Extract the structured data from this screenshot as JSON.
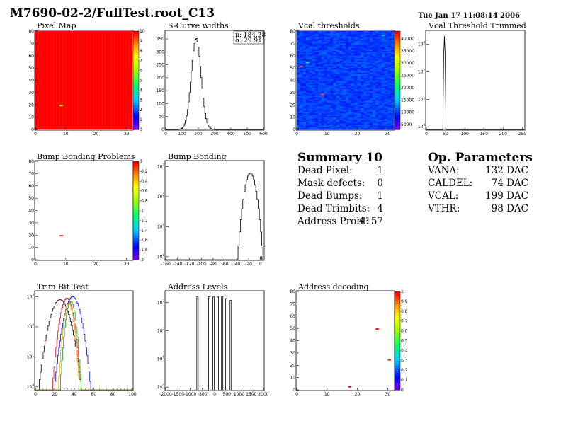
{
  "page": {
    "title": "M7690-02-2/FullTest.root_C13",
    "date": "Tue Jan 17 11:08:14 2006"
  },
  "summary": {
    "title": "Summary",
    "count": "10",
    "rows": [
      {
        "label": "Dead Pixel:",
        "value": "1"
      },
      {
        "label": "Mask defects:",
        "value": "0"
      },
      {
        "label": "Dead Bumps:",
        "value": "1"
      },
      {
        "label": "Dead Trimbits:",
        "value": "4"
      },
      {
        "label": "Address Probl:",
        "value": "4157"
      }
    ]
  },
  "op_parameters": {
    "title": "Op. Parameters",
    "rows": [
      {
        "label": "VANA:",
        "value": "132 DAC"
      },
      {
        "label": "CALDEL:",
        "value": "74 DAC"
      },
      {
        "label": "VCAL:",
        "value": "199 DAC"
      },
      {
        "label": "VTHR:",
        "value": "98 DAC"
      }
    ]
  },
  "chart_data": [
    {
      "id": "pixel-map",
      "type": "heatmap",
      "title": "Pixel Map",
      "xlim": [
        0,
        32
      ],
      "ylim": [
        0,
        80
      ],
      "xticks": [
        "0",
        "10",
        "20",
        "30"
      ],
      "yticks": [
        "0",
        "10",
        "20",
        "30",
        "40",
        "50",
        "60",
        "70",
        "80"
      ],
      "fill_value": 10,
      "z_range": [
        0,
        10
      ],
      "colorbar_ticks": [
        "0",
        "1",
        "2",
        "3",
        "4",
        "5",
        "6",
        "7",
        "8",
        "9",
        "10"
      ],
      "special_pixels": [
        {
          "x": 8,
          "y": 19,
          "value": 6
        }
      ]
    },
    {
      "id": "scurve-widths",
      "type": "line",
      "title": "S-Curve widths",
      "xlim": [
        0,
        600
      ],
      "ylim": [
        0,
        380
      ],
      "xticks": [
        "0",
        "100",
        "200",
        "300",
        "400",
        "500",
        "600"
      ],
      "yticks": [
        "0",
        "50",
        "100",
        "150",
        "200",
        "250",
        "300",
        "350"
      ],
      "stats": [
        "μ: 184.28",
        "σ: 29.91"
      ],
      "mean": 184.28,
      "sigma": 29.91,
      "peak": 352
    },
    {
      "id": "vcal-thresholds",
      "type": "heatmap",
      "title": "Vcal thresholds",
      "xlim": [
        0,
        32
      ],
      "ylim": [
        0,
        80
      ],
      "xticks": [
        "0",
        "10",
        "20",
        "30"
      ],
      "yticks": [
        "0",
        "10",
        "20",
        "30",
        "40",
        "50",
        "60",
        "70",
        "80"
      ],
      "z_range": [
        3000,
        43000
      ],
      "colorbar_ticks": [
        "5000",
        "10000",
        "15000",
        "20000",
        "25000",
        "30000",
        "35000",
        "40000"
      ],
      "special_pixels": [
        {
          "x": 1,
          "y": 51,
          "value": 40000
        },
        {
          "x": 8,
          "y": 28,
          "value": 40000
        },
        {
          "x": 28,
          "y": 76,
          "value": 15000
        },
        {
          "x": 3,
          "y": 54,
          "value": 20000
        }
      ]
    },
    {
      "id": "vcal-threshold-trimmed",
      "type": "line",
      "title": "Vcal Threshold Trimmed",
      "xlim": [
        0,
        255
      ],
      "log_y": true,
      "ylim_log": [
        0.8,
        3000
      ],
      "xticks": [
        "0",
        "50",
        "100",
        "150",
        "200",
        "250"
      ],
      "ytick_exps": [
        1,
        2,
        3
      ],
      "peak": {
        "x": 47,
        "width": 4,
        "value": 2000
      }
    },
    {
      "id": "bump-bonding-problems",
      "type": "heatmap",
      "title": "Bump Bonding Problems",
      "xlim": [
        0,
        32
      ],
      "ylim": [
        0,
        80
      ],
      "xticks": [
        "0",
        "10",
        "20",
        "30"
      ],
      "yticks": [
        "0",
        "10",
        "20",
        "30",
        "40",
        "50",
        "60",
        "70",
        "80"
      ],
      "z_range": [
        -2,
        0
      ],
      "colorbar_ticks": [
        "0",
        "-0.2",
        "-0.4",
        "-0.6",
        "-0.8",
        "-1",
        "-1.2",
        "-1.4",
        "-1.6",
        "-1.8",
        "-2"
      ],
      "special_pixels": [
        {
          "x": 8,
          "y": 19,
          "value": 0
        }
      ]
    },
    {
      "id": "bump-bonding",
      "type": "line",
      "title": "Bump Bonding",
      "xlim": [
        -160,
        5
      ],
      "log_y": true,
      "ylim_log": [
        0.8,
        1500
      ],
      "xticks": [
        "-160",
        "-140",
        "-120",
        "-100",
        "-80",
        "-60",
        "-40",
        "-20",
        "0"
      ],
      "ytick_exps": [
        1,
        2,
        3
      ],
      "peak": {
        "x": -18,
        "sigma": 6,
        "value": 600
      },
      "outlier": {
        "x": 1,
        "value": 1
      }
    },
    {
      "id": "trim-bit-test",
      "type": "line",
      "title": "Trim Bit Test",
      "xlim": [
        0,
        100
      ],
      "log_y": true,
      "ylim_log": [
        0.8,
        1500
      ],
      "xticks": [
        "0",
        "20",
        "40",
        "60",
        "80",
        "100"
      ],
      "ytick_exps": [
        1,
        2,
        3
      ],
      "series": [
        {
          "color": "#000000",
          "center": 25,
          "sigma": 6,
          "peak": 800
        },
        {
          "color": "#ff0000",
          "center": 32,
          "sigma": 4,
          "peak": 900
        },
        {
          "color": "#00b000",
          "center": 36,
          "sigma": 3,
          "peak": 700
        },
        {
          "color": "#0000ff",
          "center": 38,
          "sigma": 5,
          "peak": 1000
        },
        {
          "color": "#ff9900",
          "center": 34,
          "sigma": 3,
          "peak": 600
        }
      ]
    },
    {
      "id": "address-levels",
      "type": "line",
      "title": "Address Levels",
      "xlim": [
        -2000,
        2000
      ],
      "log_y": true,
      "ylim_log": [
        0.8,
        2500
      ],
      "xticks": [
        "-2000",
        "-1500",
        "-1000",
        "-500",
        "0",
        "500",
        "1000",
        "1500",
        "2000"
      ],
      "ytick_exps": [
        1,
        2,
        3
      ],
      "peaks": [
        {
          "x": -700,
          "value": 1600
        },
        {
          "x": -220,
          "value": 1600
        },
        {
          "x": -40,
          "value": 1600
        },
        {
          "x": 130,
          "value": 1600
        },
        {
          "x": 310,
          "value": 1600
        },
        {
          "x": 480,
          "value": 1400
        },
        {
          "x": 660,
          "value": 1200
        }
      ]
    },
    {
      "id": "address-decoding",
      "type": "heatmap",
      "title": "Address decoding",
      "xlim": [
        0,
        32
      ],
      "ylim": [
        0,
        80
      ],
      "xticks": [
        "0",
        "10",
        "20",
        "30"
      ],
      "yticks": [
        "0",
        "10",
        "20",
        "30",
        "40",
        "50",
        "60",
        "70",
        "80"
      ],
      "z_range": [
        0,
        1
      ],
      "colorbar_ticks": [
        "0",
        "0.1",
        "0.2",
        "0.3",
        "0.4",
        "0.5",
        "0.6",
        "0.7",
        "0.8",
        "0.9",
        "1"
      ],
      "special_pixels": [
        {
          "x": 26,
          "y": 49,
          "value": 1
        },
        {
          "x": 30,
          "y": 24,
          "value": 1
        },
        {
          "x": 17,
          "y": 2,
          "value": 1
        }
      ]
    }
  ]
}
